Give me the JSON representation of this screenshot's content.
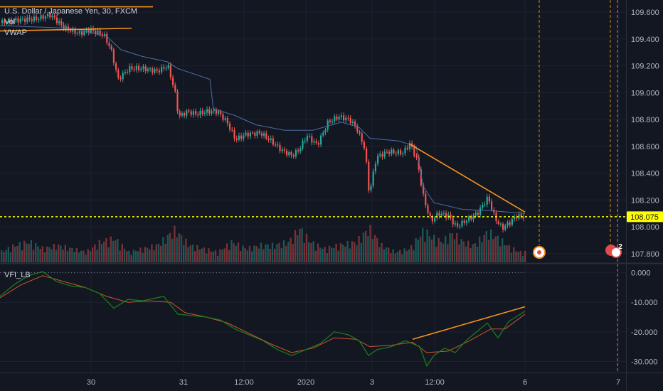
{
  "header": {
    "symbol_title": "U.S. Dollar / Japanese Yen, 30, FXCM",
    "indicator_vol": "Vol",
    "indicator_vwap": "VWAP",
    "indicator_vfi": "VFI_LB"
  },
  "colors": {
    "background": "#131722",
    "grid": "#1e2230",
    "axis_text": "#b2b5be",
    "up_candle": "#26a69a",
    "down_candle": "#ef5350",
    "vwap_line": "#4a6fa5",
    "trendline": "#f7931a",
    "price_line": "#ffff00",
    "vfi_line": "#1c7a1c",
    "vfi_signal": "#d4542e",
    "event_marker": "#e34b4b"
  },
  "chart_data": [
    {
      "type": "candlestick",
      "title": "U.S. Dollar / Japanese Yen, 30, FXCM",
      "ylim": [
        107.73,
        109.68
      ],
      "y_ticks": [
        "109.600",
        "109.400",
        "109.200",
        "109.000",
        "108.800",
        "108.600",
        "108.400",
        "108.200",
        "108.000",
        "107.800"
      ],
      "x_ticks": [
        "30",
        "31",
        "12:00",
        "2020",
        "3",
        "12:00",
        "6",
        "7"
      ],
      "last_price": {
        "label": "108.075",
        "value": 108.075
      },
      "price_path_approx": [
        {
          "x": 0,
          "y": 109.52
        },
        {
          "x": 20,
          "y": 109.54
        },
        {
          "x": 50,
          "y": 109.55
        },
        {
          "x": 70,
          "y": 109.58
        },
        {
          "x": 90,
          "y": 109.48
        },
        {
          "x": 110,
          "y": 109.44
        },
        {
          "x": 125,
          "y": 109.47
        },
        {
          "x": 145,
          "y": 109.43
        },
        {
          "x": 155,
          "y": 109.32
        },
        {
          "x": 165,
          "y": 109.1
        },
        {
          "x": 180,
          "y": 109.18
        },
        {
          "x": 200,
          "y": 109.18
        },
        {
          "x": 220,
          "y": 109.16
        },
        {
          "x": 235,
          "y": 109.2
        },
        {
          "x": 245,
          "y": 109.0
        },
        {
          "x": 250,
          "y": 108.82
        },
        {
          "x": 262,
          "y": 108.86
        },
        {
          "x": 275,
          "y": 108.84
        },
        {
          "x": 290,
          "y": 108.86
        },
        {
          "x": 305,
          "y": 108.86
        },
        {
          "x": 318,
          "y": 108.78
        },
        {
          "x": 330,
          "y": 108.65
        },
        {
          "x": 345,
          "y": 108.69
        },
        {
          "x": 365,
          "y": 108.7
        },
        {
          "x": 380,
          "y": 108.64
        },
        {
          "x": 395,
          "y": 108.57
        },
        {
          "x": 410,
          "y": 108.53
        },
        {
          "x": 420,
          "y": 108.58
        },
        {
          "x": 430,
          "y": 108.68
        },
        {
          "x": 445,
          "y": 108.61
        },
        {
          "x": 460,
          "y": 108.78
        },
        {
          "x": 475,
          "y": 108.82
        },
        {
          "x": 490,
          "y": 108.8
        },
        {
          "x": 500,
          "y": 108.74
        },
        {
          "x": 512,
          "y": 108.58
        },
        {
          "x": 518,
          "y": 108.24
        },
        {
          "x": 528,
          "y": 108.52
        },
        {
          "x": 545,
          "y": 108.56
        },
        {
          "x": 565,
          "y": 108.55
        },
        {
          "x": 575,
          "y": 108.62
        },
        {
          "x": 585,
          "y": 108.5
        },
        {
          "x": 595,
          "y": 108.2
        },
        {
          "x": 605,
          "y": 108.04
        },
        {
          "x": 615,
          "y": 108.1
        },
        {
          "x": 630,
          "y": 108.08
        },
        {
          "x": 640,
          "y": 108.0
        },
        {
          "x": 655,
          "y": 108.05
        },
        {
          "x": 670,
          "y": 108.1
        },
        {
          "x": 685,
          "y": 108.22
        },
        {
          "x": 695,
          "y": 108.06
        },
        {
          "x": 705,
          "y": 107.99
        },
        {
          "x": 715,
          "y": 108.03
        },
        {
          "x": 725,
          "y": 108.08
        },
        {
          "x": 738,
          "y": 108.075
        }
      ],
      "vwap_path_approx": [
        {
          "x": 0,
          "y": 109.5
        },
        {
          "x": 100,
          "y": 109.48
        },
        {
          "x": 150,
          "y": 109.42
        },
        {
          "x": 170,
          "y": 109.32
        },
        {
          "x": 200,
          "y": 109.27
        },
        {
          "x": 235,
          "y": 109.23
        },
        {
          "x": 250,
          "y": 109.18
        },
        {
          "x": 295,
          "y": 109.1
        },
        {
          "x": 300,
          "y": 108.88
        },
        {
          "x": 330,
          "y": 108.83
        },
        {
          "x": 360,
          "y": 108.76
        },
        {
          "x": 400,
          "y": 108.72
        },
        {
          "x": 440,
          "y": 108.72
        },
        {
          "x": 480,
          "y": 108.78
        },
        {
          "x": 505,
          "y": 108.74
        },
        {
          "x": 520,
          "y": 108.66
        },
        {
          "x": 560,
          "y": 108.64
        },
        {
          "x": 585,
          "y": 108.6
        },
        {
          "x": 595,
          "y": 108.3
        },
        {
          "x": 610,
          "y": 108.18
        },
        {
          "x": 650,
          "y": 108.13
        },
        {
          "x": 690,
          "y": 108.12
        },
        {
          "x": 738,
          "y": 108.1
        }
      ],
      "trendlines": [
        {
          "from": {
            "x": 0,
            "y": 109.64
          },
          "to": {
            "x": 215,
            "y": 109.64
          }
        },
        {
          "from": {
            "x": 0,
            "y": 109.46
          },
          "to": {
            "x": 185,
            "y": 109.48
          }
        },
        {
          "from": {
            "x": 575,
            "y": 108.62
          },
          "to": {
            "x": 738,
            "y": 108.11
          }
        }
      ],
      "volume": {
        "series": [
          {
            "x": 0,
            "v": 0.3,
            "up": true
          },
          {
            "x": 20,
            "v": 0.5,
            "up": false
          },
          {
            "x": 40,
            "v": 0.6,
            "up": true
          },
          {
            "x": 60,
            "v": 0.4,
            "up": false
          },
          {
            "x": 80,
            "v": 0.5,
            "up": true
          },
          {
            "x": 100,
            "v": 0.4,
            "up": false
          },
          {
            "x": 120,
            "v": 0.3,
            "up": true
          },
          {
            "x": 140,
            "v": 0.6,
            "up": false
          },
          {
            "x": 160,
            "v": 0.7,
            "up": false
          },
          {
            "x": 180,
            "v": 0.3,
            "up": true
          },
          {
            "x": 200,
            "v": 0.4,
            "up": false
          },
          {
            "x": 220,
            "v": 0.5,
            "up": true
          },
          {
            "x": 245,
            "v": 0.95,
            "up": false
          },
          {
            "x": 265,
            "v": 0.5,
            "up": true
          },
          {
            "x": 285,
            "v": 0.4,
            "up": false
          },
          {
            "x": 305,
            "v": 0.3,
            "up": true
          },
          {
            "x": 325,
            "v": 0.6,
            "up": false
          },
          {
            "x": 345,
            "v": 0.4,
            "up": true
          },
          {
            "x": 365,
            "v": 0.5,
            "up": false
          },
          {
            "x": 385,
            "v": 0.5,
            "up": true
          },
          {
            "x": 405,
            "v": 0.6,
            "up": false
          },
          {
            "x": 420,
            "v": 1.0,
            "up": true
          },
          {
            "x": 435,
            "v": 0.6,
            "up": false
          },
          {
            "x": 455,
            "v": 0.4,
            "up": true
          },
          {
            "x": 475,
            "v": 0.5,
            "up": false
          },
          {
            "x": 500,
            "v": 0.6,
            "up": true
          },
          {
            "x": 518,
            "v": 1.0,
            "up": false
          },
          {
            "x": 535,
            "v": 0.5,
            "up": true
          },
          {
            "x": 555,
            "v": 0.3,
            "up": false
          },
          {
            "x": 575,
            "v": 0.4,
            "up": true
          },
          {
            "x": 595,
            "v": 0.95,
            "up": false
          },
          {
            "x": 605,
            "v": 0.75,
            "up": true
          },
          {
            "x": 620,
            "v": 0.6,
            "up": false
          },
          {
            "x": 635,
            "v": 0.85,
            "up": true
          },
          {
            "x": 650,
            "v": 0.6,
            "up": false
          },
          {
            "x": 665,
            "v": 0.5,
            "up": true
          },
          {
            "x": 685,
            "v": 0.9,
            "up": false
          },
          {
            "x": 700,
            "v": 0.7,
            "up": true
          },
          {
            "x": 715,
            "v": 0.45,
            "up": false
          },
          {
            "x": 730,
            "v": 0.3,
            "up": true
          }
        ]
      },
      "event_badges": [
        "",
        "2"
      ]
    },
    {
      "type": "line",
      "title": "VFI_LB",
      "ylim": [
        -33.5,
        2.8
      ],
      "y_ticks": [
        "0.000",
        "-10.000",
        "-20.000",
        "-30.000"
      ],
      "series": [
        {
          "points": [
            {
              "x": 0,
              "y": -8
            },
            {
              "x": 20,
              "y": -4
            },
            {
              "x": 40,
              "y": -1
            },
            {
              "x": 60,
              "y": 0.4
            },
            {
              "x": 80,
              "y": -3
            },
            {
              "x": 100,
              "y": -4.5
            },
            {
              "x": 120,
              "y": -5
            },
            {
              "x": 140,
              "y": -7
            },
            {
              "x": 160,
              "y": -12
            },
            {
              "x": 180,
              "y": -9
            },
            {
              "x": 200,
              "y": -9.5
            },
            {
              "x": 230,
              "y": -8
            },
            {
              "x": 250,
              "y": -14
            },
            {
              "x": 270,
              "y": -14.5
            },
            {
              "x": 290,
              "y": -15
            },
            {
              "x": 310,
              "y": -16
            },
            {
              "x": 330,
              "y": -19
            },
            {
              "x": 350,
              "y": -21
            },
            {
              "x": 370,
              "y": -23
            },
            {
              "x": 390,
              "y": -26
            },
            {
              "x": 410,
              "y": -28
            },
            {
              "x": 430,
              "y": -26
            },
            {
              "x": 450,
              "y": -24
            },
            {
              "x": 470,
              "y": -20
            },
            {
              "x": 490,
              "y": -21
            },
            {
              "x": 505,
              "y": -23
            },
            {
              "x": 518,
              "y": -28
            },
            {
              "x": 530,
              "y": -26
            },
            {
              "x": 550,
              "y": -25
            },
            {
              "x": 570,
              "y": -23
            },
            {
              "x": 590,
              "y": -25
            },
            {
              "x": 600,
              "y": -31.5
            },
            {
              "x": 610,
              "y": -28
            },
            {
              "x": 625,
              "y": -25.5
            },
            {
              "x": 640,
              "y": -27
            },
            {
              "x": 655,
              "y": -23
            },
            {
              "x": 670,
              "y": -20
            },
            {
              "x": 685,
              "y": -17
            },
            {
              "x": 700,
              "y": -22
            },
            {
              "x": 715,
              "y": -16.5
            },
            {
              "x": 725,
              "y": -15
            },
            {
              "x": 738,
              "y": -13
            }
          ]
        },
        {
          "points": [
            {
              "x": 0,
              "y": -8.5
            },
            {
              "x": 30,
              "y": -4
            },
            {
              "x": 60,
              "y": -1
            },
            {
              "x": 90,
              "y": -3
            },
            {
              "x": 120,
              "y": -5
            },
            {
              "x": 150,
              "y": -8
            },
            {
              "x": 180,
              "y": -10
            },
            {
              "x": 210,
              "y": -9.5
            },
            {
              "x": 240,
              "y": -10
            },
            {
              "x": 260,
              "y": -13.5
            },
            {
              "x": 290,
              "y": -15
            },
            {
              "x": 320,
              "y": -17
            },
            {
              "x": 350,
              "y": -20.5
            },
            {
              "x": 380,
              "y": -24
            },
            {
              "x": 410,
              "y": -27
            },
            {
              "x": 440,
              "y": -25.5
            },
            {
              "x": 470,
              "y": -22
            },
            {
              "x": 500,
              "y": -22.5
            },
            {
              "x": 520,
              "y": -25
            },
            {
              "x": 550,
              "y": -24.5
            },
            {
              "x": 580,
              "y": -23.5
            },
            {
              "x": 600,
              "y": -27
            },
            {
              "x": 630,
              "y": -26.5
            },
            {
              "x": 660,
              "y": -23
            },
            {
              "x": 690,
              "y": -19
            },
            {
              "x": 710,
              "y": -19
            },
            {
              "x": 738,
              "y": -14
            }
          ]
        }
      ],
      "trendlines": [
        {
          "from": {
            "x": 580,
            "y": -22.5
          },
          "to": {
            "x": 738,
            "y": -11.5
          }
        }
      ]
    }
  ]
}
